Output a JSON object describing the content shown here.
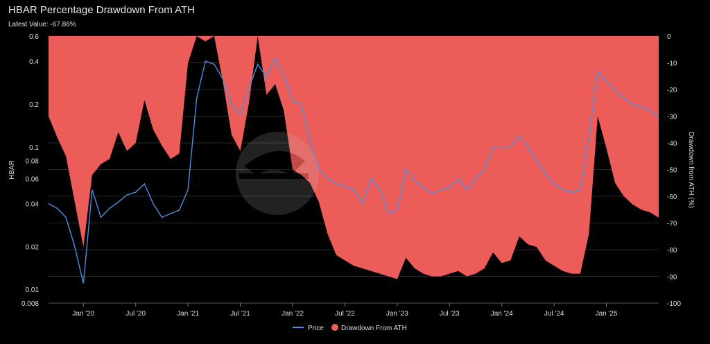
{
  "chart_data": {
    "type": "area",
    "title": "HBAR Percentage Drawdown From ATH",
    "subtitle": "Latest Value: -67.86%",
    "ylabel_left": "HBAR",
    "ylabel_right": "Drawdown from ATH (%)",
    "y_left_scale": "log",
    "y_left_ticks": [
      "0.008",
      "0.01",
      "0.02",
      "0.04",
      "0.06",
      "0.08",
      "0.1",
      "0.2",
      "0.4",
      "0.6"
    ],
    "y_left_range": [
      0.008,
      0.6
    ],
    "y_right_ticks": [
      "0",
      "-10",
      "-20",
      "-30",
      "-40",
      "-50",
      "-60",
      "-70",
      "-80",
      "-90",
      "-100"
    ],
    "y_right_range": [
      -100,
      0
    ],
    "x_ticks": [
      "Jan '20",
      "Jul '20",
      "Jan '21",
      "Jul '21",
      "Jan '22",
      "Jul '22",
      "Jan '23",
      "Jul '23",
      "Jan '24",
      "Jul '24",
      "Jan '25"
    ],
    "x_range": [
      "2019-09",
      "2025-07"
    ],
    "legend_position": "bottom-center",
    "grid": true,
    "series": [
      {
        "name": "Price",
        "color": "#4a90e2",
        "x": [
          "2019-09",
          "2019-10",
          "2019-11",
          "2019-12",
          "2020-01",
          "2020-02",
          "2020-03",
          "2020-04",
          "2020-05",
          "2020-06",
          "2020-07",
          "2020-08",
          "2020-09",
          "2020-10",
          "2020-11",
          "2020-12",
          "2021-01",
          "2021-02",
          "2021-03",
          "2021-04",
          "2021-05",
          "2021-06",
          "2021-07",
          "2021-08",
          "2021-09",
          "2021-10",
          "2021-11",
          "2021-12",
          "2022-01",
          "2022-02",
          "2022-03",
          "2022-04",
          "2022-05",
          "2022-06",
          "2022-07",
          "2022-08",
          "2022-09",
          "2022-10",
          "2022-11",
          "2022-12",
          "2023-01",
          "2023-02",
          "2023-03",
          "2023-04",
          "2023-05",
          "2023-06",
          "2023-07",
          "2023-08",
          "2023-09",
          "2023-10",
          "2023-11",
          "2023-12",
          "2024-01",
          "2024-02",
          "2024-03",
          "2024-04",
          "2024-05",
          "2024-06",
          "2024-07",
          "2024-08",
          "2024-09",
          "2024-10",
          "2024-11",
          "2024-12",
          "2025-01",
          "2025-02",
          "2025-03",
          "2025-04",
          "2025-05",
          "2025-06",
          "2025-07"
        ],
        "values": [
          0.04,
          0.037,
          0.032,
          0.02,
          0.011,
          0.05,
          0.032,
          0.037,
          0.041,
          0.046,
          0.048,
          0.055,
          0.04,
          0.032,
          0.034,
          0.036,
          0.05,
          0.22,
          0.4,
          0.38,
          0.3,
          0.2,
          0.17,
          0.26,
          0.38,
          0.31,
          0.42,
          0.32,
          0.21,
          0.2,
          0.11,
          0.07,
          0.06,
          0.055,
          0.053,
          0.05,
          0.04,
          0.06,
          0.05,
          0.034,
          0.036,
          0.07,
          0.058,
          0.052,
          0.047,
          0.05,
          0.052,
          0.06,
          0.05,
          0.06,
          0.07,
          0.1,
          0.1,
          0.1,
          0.12,
          0.1,
          0.08,
          0.065,
          0.055,
          0.05,
          0.048,
          0.05,
          0.12,
          0.34,
          0.29,
          0.25,
          0.22,
          0.2,
          0.19,
          0.18,
          0.16
        ]
      },
      {
        "name": "Drawdown From ATH",
        "color": "#ec5d5a",
        "x": [
          "2019-09",
          "2019-10",
          "2019-11",
          "2019-12",
          "2020-01",
          "2020-02",
          "2020-03",
          "2020-04",
          "2020-05",
          "2020-06",
          "2020-07",
          "2020-08",
          "2020-09",
          "2020-10",
          "2020-11",
          "2020-12",
          "2021-01",
          "2021-02",
          "2021-03",
          "2021-04",
          "2021-05",
          "2021-06",
          "2021-07",
          "2021-08",
          "2021-09",
          "2021-10",
          "2021-11",
          "2021-12",
          "2022-01",
          "2022-02",
          "2022-03",
          "2022-04",
          "2022-05",
          "2022-06",
          "2022-07",
          "2022-08",
          "2022-09",
          "2022-10",
          "2022-11",
          "2022-12",
          "2023-01",
          "2023-02",
          "2023-03",
          "2023-04",
          "2023-05",
          "2023-06",
          "2023-07",
          "2023-08",
          "2023-09",
          "2023-10",
          "2023-11",
          "2023-12",
          "2024-01",
          "2024-02",
          "2024-03",
          "2024-04",
          "2024-05",
          "2024-06",
          "2024-07",
          "2024-08",
          "2024-09",
          "2024-10",
          "2024-11",
          "2024-12",
          "2025-01",
          "2025-02",
          "2025-03",
          "2025-04",
          "2025-05",
          "2025-06",
          "2025-07"
        ],
        "values": [
          -30,
          -38,
          -45,
          -62,
          -79,
          -52,
          -48,
          -46,
          -36,
          -43,
          -40,
          -24,
          -35,
          -41,
          -46,
          -44,
          -10,
          0,
          -2,
          0,
          -17,
          -37,
          -43,
          -25,
          0,
          -22,
          -18,
          -28,
          -50,
          -52,
          -55,
          -62,
          -74,
          -82,
          -84,
          -86,
          -87,
          -88,
          -89,
          -90,
          -91,
          -83,
          -87,
          -89,
          -90,
          -90,
          -89,
          -88,
          -90,
          -89,
          -87,
          -81,
          -85,
          -84,
          -75,
          -78,
          -79,
          -84,
          -86,
          -88,
          -89,
          -89,
          -74,
          -30,
          -42,
          -55,
          -60,
          -63,
          -65,
          -66,
          -68
        ]
      }
    ]
  }
}
